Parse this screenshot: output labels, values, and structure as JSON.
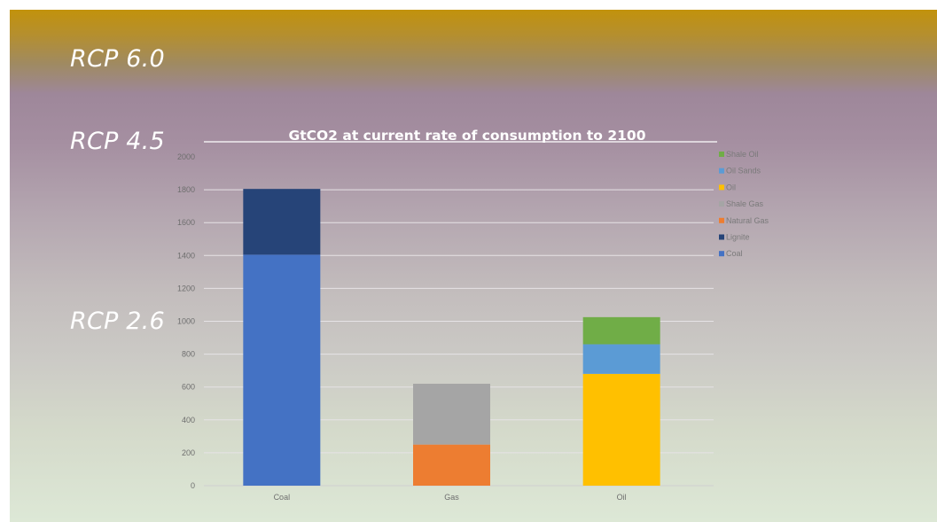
{
  "slide": {
    "rcp_labels": [
      "RCP 6.0",
      "RCP 4.5",
      "RCP 2.6"
    ]
  },
  "chart_data": {
    "type": "bar",
    "stacked": true,
    "title": "GtCO2 at current rate of consumption to 2100",
    "categories": [
      "Coal",
      "Gas",
      "Oil"
    ],
    "series": [
      {
        "name": "Coal",
        "color": "#4472c4",
        "values": [
          1405,
          0,
          0
        ]
      },
      {
        "name": "Lignite",
        "color": "#264478",
        "values": [
          400,
          0,
          0
        ]
      },
      {
        "name": "Natural Gas",
        "color": "#ed7d31",
        "values": [
          0,
          250,
          0
        ]
      },
      {
        "name": "Shale Gas",
        "color": "#a5a5a5",
        "values": [
          0,
          370,
          0
        ]
      },
      {
        "name": "Oil",
        "color": "#ffc000",
        "values": [
          0,
          0,
          680
        ]
      },
      {
        "name": "Oil Sands",
        "color": "#5b9bd5",
        "values": [
          0,
          0,
          180
        ]
      },
      {
        "name": "Shale  Oil",
        "color": "#70ad47",
        "values": [
          0,
          0,
          165
        ]
      }
    ],
    "legend_order": [
      "Shale  Oil",
      "Oil Sands",
      "Oil",
      "Shale Gas",
      "Natural Gas",
      "Lignite",
      "Coal"
    ],
    "ylim": [
      0,
      2000
    ],
    "yticks": [
      0,
      200,
      400,
      600,
      800,
      1000,
      1200,
      1400,
      1600,
      1800,
      2000
    ],
    "grid": true,
    "legend_position": "right"
  }
}
